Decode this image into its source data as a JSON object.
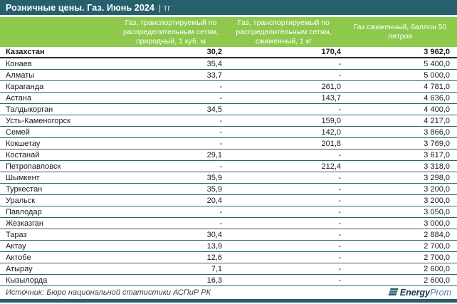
{
  "title": {
    "text": "Розничные цены. Газ. Июнь 2024",
    "unit": "| тг"
  },
  "table": {
    "columns": [
      "Газ, транспортируемый по распределительным сетям, природный, 1 куб. м",
      "Газ, транспортируемый по распределительным сетям, сжиженный, 1 кг",
      "Газ сжиженный, баллон 50 литров"
    ],
    "rows": [
      {
        "name": "Казахстан",
        "bold": true,
        "values": [
          "30,2",
          "170,4",
          "3 962,0"
        ]
      },
      {
        "name": "Конаев",
        "bold": false,
        "values": [
          "35,4",
          "-",
          "5 400,0"
        ]
      },
      {
        "name": "Алматы",
        "bold": false,
        "values": [
          "33,7",
          "-",
          "5 000,0"
        ]
      },
      {
        "name": "Караганда",
        "bold": false,
        "values": [
          "-",
          "261,0",
          "4 781,0"
        ]
      },
      {
        "name": "Астана",
        "bold": false,
        "values": [
          "-",
          "143,7",
          "4 636,0"
        ]
      },
      {
        "name": "Талдыкорган",
        "bold": false,
        "values": [
          "34,5",
          "-",
          "4 400,0"
        ]
      },
      {
        "name": "Усть-Каменогорск",
        "bold": false,
        "values": [
          "-",
          "159,0",
          "4 217,0"
        ]
      },
      {
        "name": "Семей",
        "bold": false,
        "values": [
          "-",
          "142,0",
          "3 866,0"
        ]
      },
      {
        "name": "Кокшетау",
        "bold": false,
        "values": [
          "-",
          "201,8",
          "3 769,0"
        ]
      },
      {
        "name": "Костанай",
        "bold": false,
        "values": [
          "29,1",
          "-",
          "3 617,0"
        ]
      },
      {
        "name": "Петропавловск",
        "bold": false,
        "values": [
          "-",
          "212,4",
          "3 318,0"
        ]
      },
      {
        "name": "Шымкент",
        "bold": false,
        "values": [
          "35,9",
          "-",
          "3 298,0"
        ]
      },
      {
        "name": "Туркестан",
        "bold": false,
        "values": [
          "35,9",
          "-",
          "3 200,0"
        ]
      },
      {
        "name": "Уральск",
        "bold": false,
        "values": [
          "20,4",
          "-",
          "3 200,0"
        ]
      },
      {
        "name": "Павлодар",
        "bold": false,
        "values": [
          "-",
          "-",
          "3 050,0"
        ]
      },
      {
        "name": "Жезказган",
        "bold": false,
        "values": [
          "-",
          "-",
          "3 000,0"
        ]
      },
      {
        "name": "Тараз",
        "bold": false,
        "values": [
          "30,4",
          "-",
          "2 884,0"
        ]
      },
      {
        "name": "Актау",
        "bold": false,
        "values": [
          "13,9",
          "-",
          "2 700,0"
        ]
      },
      {
        "name": "Актобе",
        "bold": false,
        "values": [
          "12,6",
          "-",
          "2 700,0"
        ]
      },
      {
        "name": "Атырау",
        "bold": false,
        "values": [
          "7,1",
          "-",
          "2 600,0"
        ]
      },
      {
        "name": "Кызылорда",
        "bold": false,
        "values": [
          "16,3",
          "-",
          "2 600,0"
        ]
      }
    ]
  },
  "footer": {
    "source": "Источник: Бюро национальной статистики АСПиР РК",
    "logo": {
      "bold_part": "Energy",
      "light_part": "Prom",
      "icon": "energyprom-layers-icon"
    }
  },
  "colors": {
    "title_bar_teal": "#275f6d",
    "header_green": "#8ec94e",
    "row_border_teal": "#2e6474",
    "kazakhstan_border": "#1c2e36",
    "logo_dark": "#16374b",
    "logo_light": "#4c7fa6"
  },
  "chart_data": {
    "type": "table",
    "title": "Розничные цены. Газ. Июнь 2024 | тг",
    "categories": [
      "Казахстан",
      "Конаев",
      "Алматы",
      "Караганда",
      "Астана",
      "Талдыкорган",
      "Усть-Каменогорск",
      "Семей",
      "Кокшетау",
      "Костанай",
      "Петропавловск",
      "Шымкент",
      "Туркестан",
      "Уральск",
      "Павлодар",
      "Жезказган",
      "Тараз",
      "Актау",
      "Актобе",
      "Атырау",
      "Кызылорда"
    ],
    "series": [
      {
        "name": "Газ, транспортируемый по распределительным сетям, природный, 1 куб. м",
        "values": [
          30.2,
          35.4,
          33.7,
          null,
          null,
          34.5,
          null,
          null,
          null,
          29.1,
          null,
          35.9,
          35.9,
          20.4,
          null,
          null,
          30.4,
          13.9,
          12.6,
          7.1,
          16.3
        ]
      },
      {
        "name": "Газ, транспортируемый по распределительным сетям, сжиженный, 1 кг",
        "values": [
          170.4,
          null,
          null,
          261.0,
          143.7,
          null,
          159.0,
          142.0,
          201.8,
          null,
          212.4,
          null,
          null,
          null,
          null,
          null,
          null,
          null,
          null,
          null,
          null
        ]
      },
      {
        "name": "Газ сжиженный, баллон 50 литров",
        "values": [
          3962.0,
          5400.0,
          5000.0,
          4781.0,
          4636.0,
          4400.0,
          4217.0,
          3866.0,
          3769.0,
          3617.0,
          3318.0,
          3298.0,
          3200.0,
          3200.0,
          3050.0,
          3000.0,
          2884.0,
          2700.0,
          2700.0,
          2600.0,
          2600.0
        ]
      }
    ],
    "source_note": "Источник: Бюро национальной статистики АСПиР РК"
  }
}
